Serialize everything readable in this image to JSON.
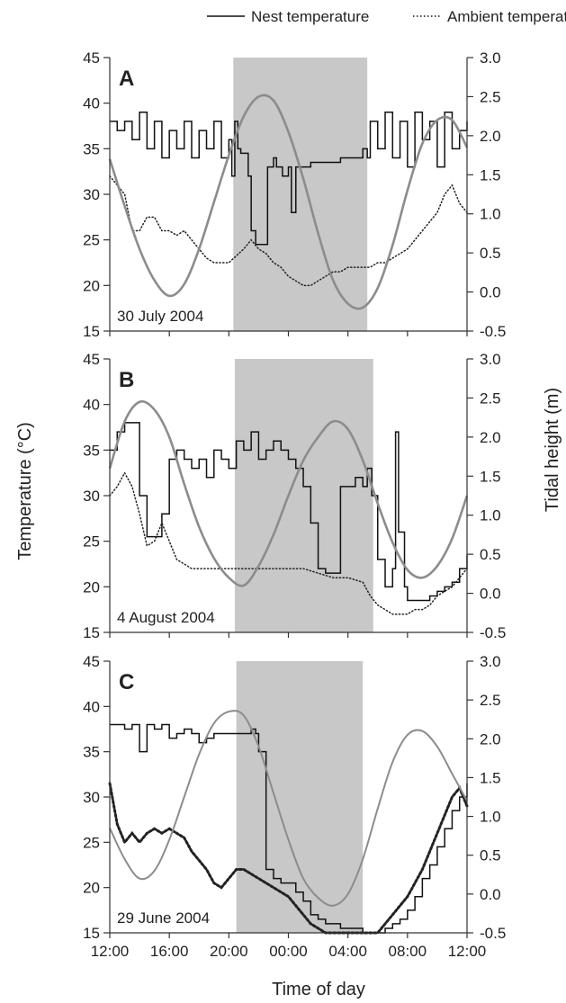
{
  "legend": [
    {
      "label": "Nest temperature",
      "style": "solid"
    },
    {
      "label": "Ambient temperature",
      "style": "dotted"
    }
  ],
  "y_left_label": "Temperature (°C)",
  "y_right_label": "Tidal height (m)",
  "x_label": "Time of day",
  "x_tick_labels": [
    "12:00",
    "16:00",
    "20:00",
    "00:00",
    "04:00",
    "08:00",
    "12:00"
  ],
  "y_left_tick_labels": [
    "45",
    "40",
    "35",
    "30",
    "25",
    "20",
    "15"
  ],
  "y_right_tick_labels": [
    "3.0",
    "2.5",
    "2.0",
    "1.5",
    "1.0",
    "0.5",
    "0.0",
    "-0.5"
  ],
  "colors": {
    "nest": "#111111",
    "ambient": "#222222",
    "tide": "#8c8c8c",
    "shade": "#c8c8c8"
  },
  "chart_data": [
    {
      "type": "line",
      "panel_label": "A",
      "date_label": "30 July 2004",
      "x_unit": "hours from 12:00",
      "xlim": [
        0,
        24
      ],
      "ylim_left": [
        15,
        45
      ],
      "ylim_right": [
        -0.5,
        3.0
      ],
      "night_shading": [
        8.3,
        17.3
      ],
      "series": [
        {
          "name": "Nest temperature",
          "axis": "left",
          "style": "step",
          "x": [
            0,
            0.5,
            1,
            1.5,
            2,
            2.5,
            3,
            3.5,
            4,
            4.5,
            5,
            5.5,
            6,
            6.5,
            7,
            7.5,
            8,
            8.2,
            8.4,
            8.6,
            8.8,
            9,
            9.3,
            9.5,
            9.8,
            10.2,
            10.6,
            11,
            11.2,
            11.6,
            12,
            12.2,
            12.5,
            13,
            13.5,
            14,
            14.5,
            15,
            15.5,
            16,
            16.5,
            17,
            17.3,
            17.5,
            18,
            18.5,
            19,
            19.5,
            20,
            20.5,
            21,
            21.5,
            22,
            22.5,
            23,
            23.5,
            24
          ],
          "y": [
            38,
            37,
            38,
            36,
            39,
            35,
            38,
            34,
            37,
            35,
            38,
            34,
            37,
            35,
            38,
            34,
            36,
            32,
            38,
            35,
            34.5,
            34.5,
            32,
            26,
            24.5,
            24.5,
            33,
            34,
            33,
            32,
            33,
            28,
            33,
            33,
            33.5,
            33.5,
            33.5,
            33.5,
            34,
            34,
            34,
            35,
            34,
            38,
            35,
            39,
            34,
            38,
            33,
            39,
            36,
            38,
            33,
            39,
            35,
            37,
            38
          ]
        },
        {
          "name": "Ambient temperature",
          "axis": "left",
          "style": "dotted",
          "x": [
            0,
            0.5,
            1,
            1.5,
            2,
            2.5,
            3,
            3.5,
            4,
            4.5,
            5,
            5.5,
            6,
            6.5,
            7,
            7.5,
            8,
            9,
            9.5,
            10,
            10.5,
            11,
            11.5,
            12,
            12.5,
            13,
            13.5,
            14,
            14.5,
            15,
            15.5,
            16,
            16.5,
            17,
            17.5,
            18,
            18.5,
            19,
            19.5,
            20,
            20.5,
            21,
            21.5,
            22,
            22.5,
            23,
            23.5,
            24
          ],
          "y": [
            32,
            31,
            30,
            26,
            26,
            27.5,
            27.5,
            26,
            26,
            25.5,
            26,
            25,
            24,
            23,
            22.5,
            22.5,
            22.5,
            24,
            25,
            24,
            23.5,
            22.5,
            22,
            21,
            20.5,
            20,
            20,
            20.5,
            21,
            21.5,
            21.5,
            22,
            22,
            22,
            22,
            22.5,
            22.5,
            23,
            23.5,
            24,
            25,
            26,
            27,
            28,
            30,
            31,
            29,
            28
          ]
        },
        {
          "name": "Tidal height",
          "axis": "right",
          "style": "smooth",
          "x": [
            0,
            1,
            2,
            3,
            4,
            5,
            6,
            7,
            8,
            9,
            10,
            11,
            12,
            13,
            14,
            15,
            16,
            17,
            18,
            19,
            20,
            21,
            22,
            23,
            24
          ],
          "y": [
            1.7,
            1.1,
            0.55,
            0.15,
            -0.05,
            0.1,
            0.55,
            1.15,
            1.75,
            2.25,
            2.5,
            2.45,
            2.05,
            1.45,
            0.75,
            0.15,
            -0.15,
            -0.2,
            0.05,
            0.6,
            1.3,
            1.9,
            2.2,
            2.2,
            1.85
          ]
        }
      ]
    },
    {
      "type": "line",
      "panel_label": "B",
      "date_label": "4 August 2004",
      "x_unit": "hours from 12:00",
      "xlim": [
        0,
        24
      ],
      "ylim_left": [
        15,
        45
      ],
      "ylim_right": [
        -0.5,
        3.0
      ],
      "night_shading": [
        8.4,
        17.7
      ],
      "series": [
        {
          "name": "Nest temperature",
          "axis": "left",
          "style": "step",
          "x": [
            0,
            0.5,
            1,
            1.5,
            2,
            2.5,
            3,
            3.5,
            4,
            4.5,
            5,
            5.5,
            6,
            6.5,
            7,
            7.5,
            8,
            8.5,
            9,
            9.5,
            10,
            10.5,
            11,
            11.5,
            12,
            12.5,
            13,
            13.5,
            14,
            14.5,
            15,
            15.5,
            16,
            16.5,
            17,
            17.3,
            17.6,
            18,
            18.5,
            19,
            19.2,
            19.4,
            19.8,
            20,
            20.5,
            21,
            21.5,
            22,
            22.5,
            23,
            23.5,
            24
          ],
          "y": [
            35,
            37,
            38,
            38,
            30,
            25.5,
            25.5,
            28,
            34,
            35,
            34,
            33,
            34,
            32,
            35,
            34,
            33,
            36,
            35,
            37,
            34,
            35,
            36,
            35,
            34,
            33,
            31,
            27,
            22,
            21.5,
            21.5,
            31,
            31,
            32,
            31,
            33,
            30,
            23,
            20,
            22,
            37,
            26,
            20,
            18.5,
            18.5,
            18.5,
            19,
            19.5,
            20,
            20.5,
            22,
            23.5
          ]
        },
        {
          "name": "Ambient temperature",
          "axis": "left",
          "style": "dotted",
          "x": [
            0,
            0.5,
            1,
            1.5,
            2,
            2.5,
            3,
            3.5,
            4,
            4.5,
            5,
            5.5,
            6,
            7,
            8,
            9,
            10,
            11,
            12,
            13,
            14,
            15,
            16,
            17,
            17.5,
            18,
            18.5,
            19,
            19.5,
            20,
            20.5,
            21,
            21.5,
            22,
            22.5,
            23,
            23.5,
            24
          ],
          "y": [
            30,
            31,
            32.5,
            31,
            28,
            24.5,
            25,
            27,
            25,
            23,
            22.5,
            22,
            22,
            22,
            22,
            22,
            22,
            22,
            22,
            22,
            21.5,
            21,
            21,
            20.5,
            19,
            18,
            17.5,
            17,
            17,
            17,
            17.5,
            17.5,
            18,
            19,
            19.5,
            20,
            21,
            22
          ]
        },
        {
          "name": "Tidal height",
          "axis": "right",
          "style": "smooth",
          "x": [
            0,
            1,
            2,
            3,
            4,
            5,
            6,
            7,
            8,
            9,
            10,
            11,
            12,
            13,
            14,
            15,
            16,
            17,
            18,
            19,
            20,
            21,
            22,
            23,
            24
          ],
          "y": [
            1.6,
            2.2,
            2.45,
            2.35,
            2.0,
            1.4,
            0.85,
            0.45,
            0.2,
            0.1,
            0.35,
            0.75,
            1.25,
            1.7,
            2.0,
            2.2,
            2.1,
            1.7,
            1.15,
            0.65,
            0.3,
            0.2,
            0.35,
            0.7,
            1.25
          ]
        }
      ]
    },
    {
      "type": "line",
      "panel_label": "C",
      "date_label": "29 June 2004",
      "x_unit": "hours from 12:00",
      "xlim": [
        0,
        24
      ],
      "ylim_left": [
        15,
        45
      ],
      "ylim_right": [
        -0.5,
        3.0
      ],
      "night_shading": [
        8.5,
        17.0
      ],
      "series": [
        {
          "name": "Nest temperature",
          "axis": "left",
          "style": "step",
          "x": [
            0,
            0.5,
            1,
            1.5,
            2,
            2.5,
            3,
            3.5,
            4,
            4.5,
            5,
            5.5,
            6,
            6.5,
            7,
            7.5,
            8,
            8.5,
            9,
            9.5,
            9.8,
            10,
            10.5,
            11,
            11.5,
            12,
            12.5,
            13,
            13.5,
            14,
            14.5,
            15,
            15.5,
            16,
            16.5,
            17,
            17.5,
            18,
            18.5,
            19,
            19.5,
            20,
            20.5,
            21,
            21.5,
            22,
            22.5,
            23,
            23.5,
            24
          ],
          "y": [
            38,
            38,
            37.5,
            38,
            35,
            38,
            37.5,
            38,
            36.5,
            37,
            37.5,
            37,
            36,
            36.5,
            37,
            37,
            37,
            37,
            37,
            37.5,
            37,
            35,
            22,
            21,
            20.5,
            20.5,
            19.5,
            18.5,
            17,
            16.5,
            16,
            16,
            15.5,
            15.5,
            15.5,
            15,
            15,
            15,
            15.5,
            16,
            16.5,
            17.5,
            19,
            21,
            22.5,
            24.5,
            26.5,
            28.5,
            30,
            31.5
          ]
        },
        {
          "name": "Ambient temperature",
          "axis": "left",
          "style": "dotted",
          "x": [
            0,
            0.5,
            1,
            1.5,
            2,
            2.5,
            3,
            3.5,
            4,
            4.5,
            5,
            5.5,
            6,
            6.5,
            7,
            7.5,
            8,
            8.5,
            9,
            9.5,
            10,
            10.5,
            11,
            11.5,
            12,
            12.5,
            13,
            13.5,
            14,
            14.5,
            15,
            15.5,
            16,
            16.5,
            17,
            17.5,
            18,
            18.5,
            19,
            19.5,
            20,
            20.5,
            21,
            21.5,
            22,
            22.5,
            23,
            23.5,
            24
          ],
          "y": [
            31.5,
            27,
            25,
            26,
            25,
            26,
            26.5,
            26,
            26.5,
            26,
            25.5,
            24,
            23,
            22,
            20.5,
            20,
            21,
            22,
            22,
            21.5,
            21,
            20.5,
            20,
            19.5,
            19,
            18,
            17,
            16,
            15.5,
            15,
            15,
            15,
            15,
            15,
            15,
            15,
            15,
            16,
            17,
            18,
            19,
            20.5,
            22,
            24,
            26,
            28,
            30,
            31,
            29
          ]
        },
        {
          "name": "Tidal height",
          "axis": "right",
          "style": "smooth",
          "x": [
            0,
            1,
            2,
            3,
            4,
            5,
            6,
            7,
            8,
            9,
            10,
            11,
            12,
            13,
            14,
            15,
            16,
            17,
            18,
            19,
            20,
            21,
            22,
            23,
            24
          ],
          "y": [
            0.85,
            0.45,
            0.2,
            0.3,
            0.7,
            1.25,
            1.8,
            2.2,
            2.35,
            2.3,
            1.9,
            1.3,
            0.7,
            0.2,
            -0.05,
            -0.15,
            0.0,
            0.45,
            1.1,
            1.7,
            2.05,
            2.1,
            1.9,
            1.55,
            1.2
          ]
        }
      ]
    }
  ]
}
